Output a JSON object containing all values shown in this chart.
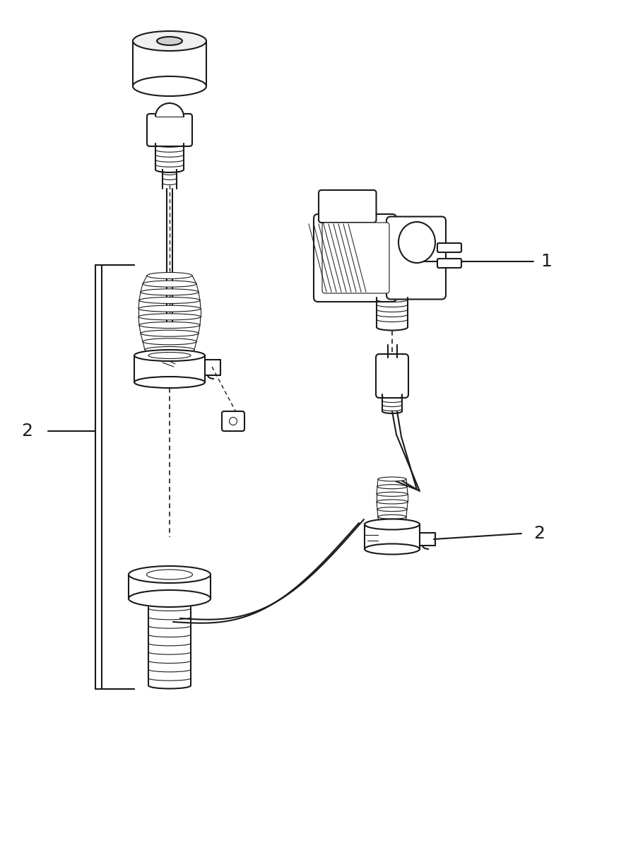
{
  "bg_color": "#ffffff",
  "line_color": "#1a1a1a",
  "line_width": 1.5,
  "thin_line": 0.8,
  "fig_width": 8.87,
  "fig_height": 12.0,
  "label_1": "1",
  "label_2_left": "2",
  "label_2_right": "2",
  "label_fontsize": 18,
  "xlim": [
    0,
    8.87
  ],
  "ylim": [
    0,
    12.0
  ]
}
